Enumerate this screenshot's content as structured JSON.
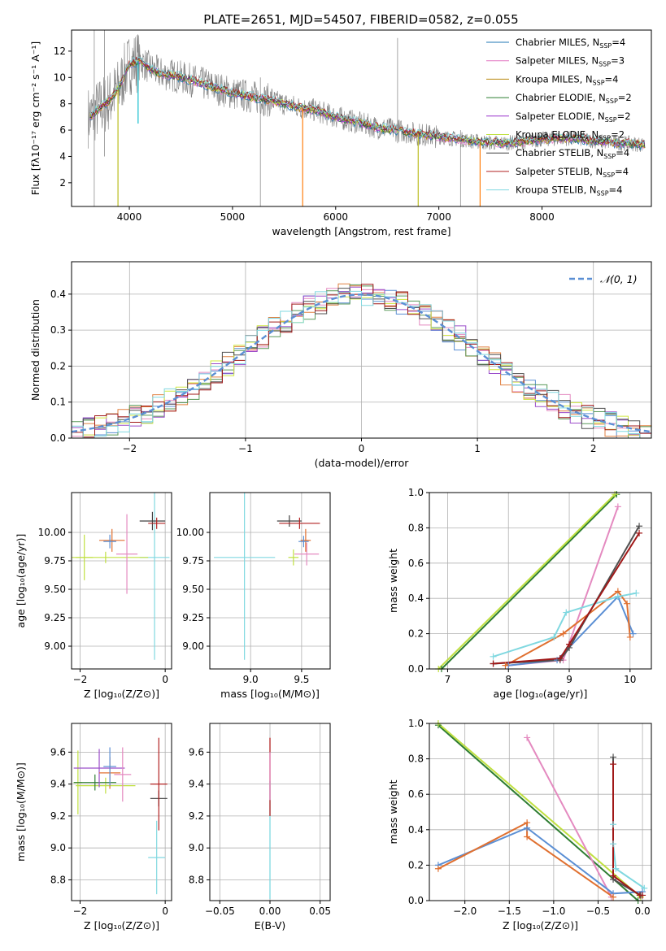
{
  "figure_title": "PLATE=2651, MJD=54507, FIBERID=0582, z=0.055",
  "chart_data": [
    {
      "id": "spectrum",
      "type": "line",
      "xlabel": "wavelength [Angstrom, rest frame]",
      "ylabel": "Flux [fλ10⁻¹⁷ erg cm⁻² s⁻¹ A⁻¹]",
      "xlim": [
        3440,
        9060
      ],
      "ylim": [
        0.2,
        13.6
      ],
      "xticks": [
        4000,
        5000,
        6000,
        7000,
        8000
      ],
      "yticks": [
        2,
        4,
        6,
        8,
        10,
        12
      ],
      "grid": false,
      "legend_position": "top-right",
      "data_color": "#7f7f7f",
      "continuum": [
        [
          3620,
          7.0
        ],
        [
          3700,
          7.6
        ],
        [
          3800,
          8.2
        ],
        [
          3900,
          9.2
        ],
        [
          3960,
          10.4
        ],
        [
          4000,
          11.0
        ],
        [
          4100,
          11.3
        ],
        [
          4200,
          10.7
        ],
        [
          4300,
          10.3
        ],
        [
          4400,
          10.2
        ],
        [
          4600,
          9.8
        ],
        [
          4800,
          9.3
        ],
        [
          5000,
          8.8
        ],
        [
          5200,
          8.5
        ],
        [
          5400,
          8.2
        ],
        [
          5600,
          7.8
        ],
        [
          5800,
          7.5
        ],
        [
          6000,
          7.0
        ],
        [
          6200,
          6.6
        ],
        [
          6400,
          6.2
        ],
        [
          6600,
          6.0
        ],
        [
          6800,
          5.7
        ],
        [
          7000,
          5.5
        ],
        [
          7200,
          5.3
        ],
        [
          7400,
          5.1
        ],
        [
          7600,
          5.0
        ],
        [
          7800,
          5.1
        ],
        [
          8000,
          5.3
        ],
        [
          8200,
          5.4
        ],
        [
          8400,
          5.3
        ],
        [
          8600,
          5.1
        ],
        [
          8800,
          5.0
        ],
        [
          9000,
          4.9
        ]
      ],
      "absorption_dips": [
        [
          3890,
          0.2,
          "#bcbd22"
        ],
        [
          4085,
          6.5,
          "#17becf"
        ],
        [
          5680,
          0.2,
          "#ff7f0e"
        ],
        [
          6800,
          0.2,
          "#bcbd22"
        ],
        [
          7400,
          0.2,
          "#ff7f0e"
        ]
      ],
      "series": [
        {
          "label": "Chabrier MILES, N",
          "sub": "SSP",
          "suffix": "=4",
          "color": "#1f77b4"
        },
        {
          "label": "Salpeter MILES, N",
          "sub": "SSP",
          "suffix": "=3",
          "color": "#e377c2"
        },
        {
          "label": "Kroupa MILES, N",
          "sub": "SSP",
          "suffix": "=4",
          "color": "#b8860b"
        },
        {
          "label": "Chabrier ELODIE, N",
          "sub": "SSP",
          "suffix": "=2",
          "color": "#2e7d32"
        },
        {
          "label": "Salpeter ELODIE, N",
          "sub": "SSP",
          "suffix": "=2",
          "color": "#9932cc"
        },
        {
          "label": "Kroupa ELODIE, N",
          "sub": "SSP",
          "suffix": "=2",
          "color": "#c0e040"
        },
        {
          "label": "Chabrier STELIB, N",
          "sub": "SSP",
          "suffix": "=4",
          "color": "#404040"
        },
        {
          "label": "Salpeter STELIB, N",
          "sub": "SSP",
          "suffix": "=4",
          "color": "#b22222"
        },
        {
          "label": "Kroupa STELIB, N",
          "sub": "SSP",
          "suffix": "=4",
          "color": "#80d8e0"
        }
      ]
    },
    {
      "id": "residuals",
      "type": "line",
      "xlabel": "(data-model)/error",
      "ylabel": "Normed distribution",
      "xlim": [
        -2.5,
        2.5
      ],
      "ylim": [
        0,
        0.49
      ],
      "xticks": [
        -2,
        -1,
        0,
        1,
        2
      ],
      "yticks": [
        0.0,
        0.1,
        0.2,
        0.3,
        0.4
      ],
      "grid": true,
      "legend_position": "top-right",
      "legend": "𝒩(0, 1)",
      "normal_color": "#5b8fd4",
      "bin_width": 0.1,
      "series_colors": [
        "#5b8fd4",
        "#e48ac0",
        "#e08040",
        "#5a9a5a",
        "#9b4dca",
        "#d0e840",
        "#505050",
        "#a01818",
        "#80d8e0"
      ]
    },
    {
      "id": "age_vs_Z",
      "type": "scatter",
      "xlabel": "Z [log₁₀(Z/Z⊙)]",
      "ylabel": "age  [log₁₀(age/yr)]",
      "xlim": [
        -2.2,
        0.15
      ],
      "ylim": [
        8.8,
        10.35
      ],
      "xticks": [
        -2,
        0
      ],
      "yticks": [
        9.0,
        9.25,
        9.5,
        9.75,
        10.0
      ],
      "grid": true,
      "points": [
        {
          "x": -0.25,
          "y": 9.78,
          "xerr": 0.35,
          "yerr": 0.9,
          "color": "#80d8e0"
        },
        {
          "x": -1.9,
          "y": 9.78,
          "xerr": 0.2,
          "yerr": 0.2,
          "color": "#c0e040"
        },
        {
          "x": -1.4,
          "y": 9.78,
          "xerr": 1.0,
          "yerr": 0.05,
          "color": "#c0e040"
        },
        {
          "x": -1.25,
          "y": 9.93,
          "xerr": 0.3,
          "yerr": 0.1,
          "color": "#e07030"
        },
        {
          "x": -1.3,
          "y": 9.92,
          "xerr": 0.15,
          "yerr": 0.06,
          "color": "#5b8fd4"
        },
        {
          "x": -0.9,
          "y": 9.81,
          "xerr": 0.25,
          "yerr": 0.35,
          "color": "#e48ac0"
        },
        {
          "x": -0.3,
          "y": 10.1,
          "xerr": 0.3,
          "yerr": 0.08,
          "color": "#404040"
        },
        {
          "x": -0.2,
          "y": 10.08,
          "xerr": 0.2,
          "yerr": 0.05,
          "color": "#b22222"
        }
      ]
    },
    {
      "id": "age_vs_mass",
      "type": "scatter",
      "xlabel": "mass [log₁₀(M/M⊙)]",
      "ylabel": "",
      "xlim": [
        8.6,
        9.78
      ],
      "ylim": [
        8.8,
        10.35
      ],
      "xticks": [
        9.0,
        9.5
      ],
      "yticks": [
        9.0,
        9.25,
        9.5,
        9.75,
        10.0
      ],
      "grid": true,
      "points": [
        {
          "x": 8.94,
          "y": 9.78,
          "xerr": 0.3,
          "yerr": 0.9,
          "color": "#80d8e0"
        },
        {
          "x": 9.42,
          "y": 9.78,
          "xerr": 0.05,
          "yerr": 0.07,
          "color": "#c0e040"
        },
        {
          "x": 9.54,
          "y": 9.93,
          "xerr": 0.05,
          "yerr": 0.1,
          "color": "#e07030"
        },
        {
          "x": 9.52,
          "y": 9.92,
          "xerr": 0.05,
          "yerr": 0.05,
          "color": "#5b8fd4"
        },
        {
          "x": 9.55,
          "y": 9.81,
          "xerr": 0.12,
          "yerr": 0.1,
          "color": "#e48ac0"
        },
        {
          "x": 9.38,
          "y": 10.1,
          "xerr": 0.12,
          "yerr": 0.05,
          "color": "#404040"
        },
        {
          "x": 9.48,
          "y": 10.08,
          "xerr": 0.2,
          "yerr": 0.05,
          "color": "#b22222"
        }
      ]
    },
    {
      "id": "weight_vs_age",
      "type": "line",
      "xlabel": "age  [log₁₀(age/yr)]",
      "ylabel": "mass weight",
      "xlim": [
        6.7,
        10.35
      ],
      "ylim": [
        0,
        1.0
      ],
      "xticks": [
        7,
        8,
        9,
        10
      ],
      "yticks": [
        0.0,
        0.2,
        0.4,
        0.6,
        0.8,
        1.0
      ],
      "grid": true,
      "series": [
        {
          "color": "#2e7d32",
          "points": [
            [
              6.9,
              0.0
            ],
            [
              9.78,
              0.99
            ]
          ]
        },
        {
          "color": "#c0e040",
          "points": [
            [
              6.85,
              0.0
            ],
            [
              9.75,
              0.99
            ]
          ]
        },
        {
          "color": "#e48ac0",
          "points": [
            [
              8.0,
              0.02
            ],
            [
              8.9,
              0.05
            ],
            [
              9.8,
              0.92
            ]
          ]
        },
        {
          "color": "#5b8fd4",
          "points": [
            [
              8.0,
              0.02
            ],
            [
              8.8,
              0.05
            ],
            [
              9.8,
              0.41
            ],
            [
              10.05,
              0.2
            ]
          ]
        },
        {
          "color": "#e07030",
          "points": [
            [
              7.95,
              0.02
            ],
            [
              8.9,
              0.2
            ],
            [
              9.8,
              0.44
            ],
            [
              9.95,
              0.37
            ],
            [
              10.0,
              0.18
            ]
          ]
        },
        {
          "color": "#80d8e0",
          "points": [
            [
              7.75,
              0.07
            ],
            [
              8.75,
              0.18
            ],
            [
              8.95,
              0.32
            ],
            [
              9.8,
              0.41
            ],
            [
              10.1,
              0.43
            ]
          ]
        },
        {
          "color": "#505050",
          "points": [
            [
              7.75,
              0.03
            ],
            [
              8.85,
              0.05
            ],
            [
              9.0,
              0.12
            ],
            [
              10.15,
              0.81
            ]
          ]
        },
        {
          "color": "#a01818",
          "points": [
            [
              7.75,
              0.03
            ],
            [
              8.85,
              0.06
            ],
            [
              9.0,
              0.14
            ],
            [
              10.15,
              0.77
            ]
          ]
        }
      ]
    },
    {
      "id": "mass_vs_Z",
      "type": "scatter",
      "xlabel": "Z [log₁₀(Z/Z⊙)]",
      "ylabel": "mass [log₁₀(M/M⊙)]",
      "xlim": [
        -2.2,
        0.15
      ],
      "ylim": [
        8.67,
        9.78
      ],
      "xticks": [
        -2,
        0
      ],
      "yticks": [
        8.8,
        9.0,
        9.2,
        9.4,
        9.6
      ],
      "grid": true,
      "points": [
        {
          "x": -0.2,
          "y": 8.94,
          "xerr": 0.2,
          "yerr": 0.23,
          "color": "#80d8e0"
        },
        {
          "x": -1.4,
          "y": 9.39,
          "xerr": 0.7,
          "yerr": 0.05,
          "color": "#c0e040"
        },
        {
          "x": -2.05,
          "y": 9.41,
          "xerr": 0.1,
          "yerr": 0.2,
          "color": "#c0e040"
        },
        {
          "x": -1.65,
          "y": 9.41,
          "xerr": 0.5,
          "yerr": 0.05,
          "color": "#2e7d32"
        },
        {
          "x": -1.55,
          "y": 9.5,
          "xerr": 0.6,
          "yerr": 0.12,
          "color": "#9b4dca"
        },
        {
          "x": -1.3,
          "y": 9.47,
          "xerr": 0.25,
          "yerr": 0.1,
          "color": "#e07030"
        },
        {
          "x": -1.3,
          "y": 9.51,
          "xerr": 0.15,
          "yerr": 0.12,
          "color": "#5b8fd4"
        },
        {
          "x": -1.0,
          "y": 9.46,
          "xerr": 0.2,
          "yerr": 0.17,
          "color": "#e48ac0"
        },
        {
          "x": -0.15,
          "y": 9.31,
          "xerr": 0.2,
          "yerr": 0.05,
          "color": "#404040"
        },
        {
          "x": -0.15,
          "y": 9.4,
          "xerr": 0.2,
          "yerr": 0.29,
          "color": "#b22222"
        }
      ]
    },
    {
      "id": "mass_vs_ebv",
      "type": "scatter",
      "xlabel": "E(B-V)",
      "ylabel": "",
      "xlim": [
        -0.06,
        0.06
      ],
      "ylim": [
        8.67,
        9.78
      ],
      "xticks": [
        -0.05,
        0.0,
        0.05
      ],
      "xtick_labels": [
        "−0.05",
        "0.00",
        "0.05"
      ],
      "yticks": [
        8.8,
        9.0,
        9.2,
        9.4,
        9.6
      ],
      "grid": true,
      "segments": [
        {
          "x": 0.0,
          "y0": 8.68,
          "y1": 9.42,
          "color": "#80d8e0"
        },
        {
          "x": 0.0,
          "y0": 9.2,
          "y1": 9.69,
          "color": "#b22222"
        },
        {
          "x": 0.0,
          "y0": 9.3,
          "y1": 9.6,
          "color": "#e48ac0"
        }
      ]
    },
    {
      "id": "weight_vs_Z",
      "type": "line",
      "xlabel": "Z [log₁₀(Z/Z⊙)]",
      "ylabel": "mass weight",
      "xlim": [
        -2.4,
        0.1
      ],
      "ylim": [
        0,
        1.0
      ],
      "xticks": [
        -2.0,
        -1.5,
        -1.0,
        -0.5,
        0.0
      ],
      "xtick_labels": [
        "−2.0",
        "−1.5",
        "−1.0",
        "−0.5",
        "0.0"
      ],
      "yticks": [
        0.0,
        0.2,
        0.4,
        0.6,
        0.8,
        1.0
      ],
      "grid": true,
      "series": [
        {
          "color": "#2e7d32",
          "points": [
            [
              -2.3,
              0.99
            ],
            [
              -0.05,
              0.0
            ]
          ]
        },
        {
          "color": "#c0e040",
          "points": [
            [
              -2.3,
              1.0
            ],
            [
              -0.02,
              0.02
            ]
          ]
        },
        {
          "color": "#e48ac0",
          "points": [
            [
              -1.3,
              0.92
            ],
            [
              -0.35,
              0.02
            ]
          ]
        },
        {
          "color": "#5b8fd4",
          "points": [
            [
              -2.3,
              0.2
            ],
            [
              -1.3,
              0.41
            ],
            [
              -0.33,
              0.04
            ],
            [
              0.0,
              0.05
            ]
          ]
        },
        {
          "color": "#e07030",
          "points": [
            [
              -2.3,
              0.18
            ],
            [
              -1.3,
              0.44
            ],
            [
              -1.3,
              0.36
            ],
            [
              -0.33,
              0.02
            ]
          ]
        },
        {
          "color": "#80d8e0",
          "points": [
            [
              -0.33,
              0.43
            ],
            [
              -0.33,
              0.32
            ],
            [
              -0.3,
              0.18
            ],
            [
              0.02,
              0.07
            ]
          ]
        },
        {
          "color": "#505050",
          "points": [
            [
              -0.33,
              0.81
            ],
            [
              -0.33,
              0.12
            ],
            [
              -0.02,
              0.03
            ]
          ]
        },
        {
          "color": "#a01818",
          "points": [
            [
              -0.33,
              0.77
            ],
            [
              -0.33,
              0.14
            ],
            [
              -0.03,
              0.03
            ],
            [
              0.0,
              0.03
            ]
          ]
        }
      ]
    }
  ]
}
